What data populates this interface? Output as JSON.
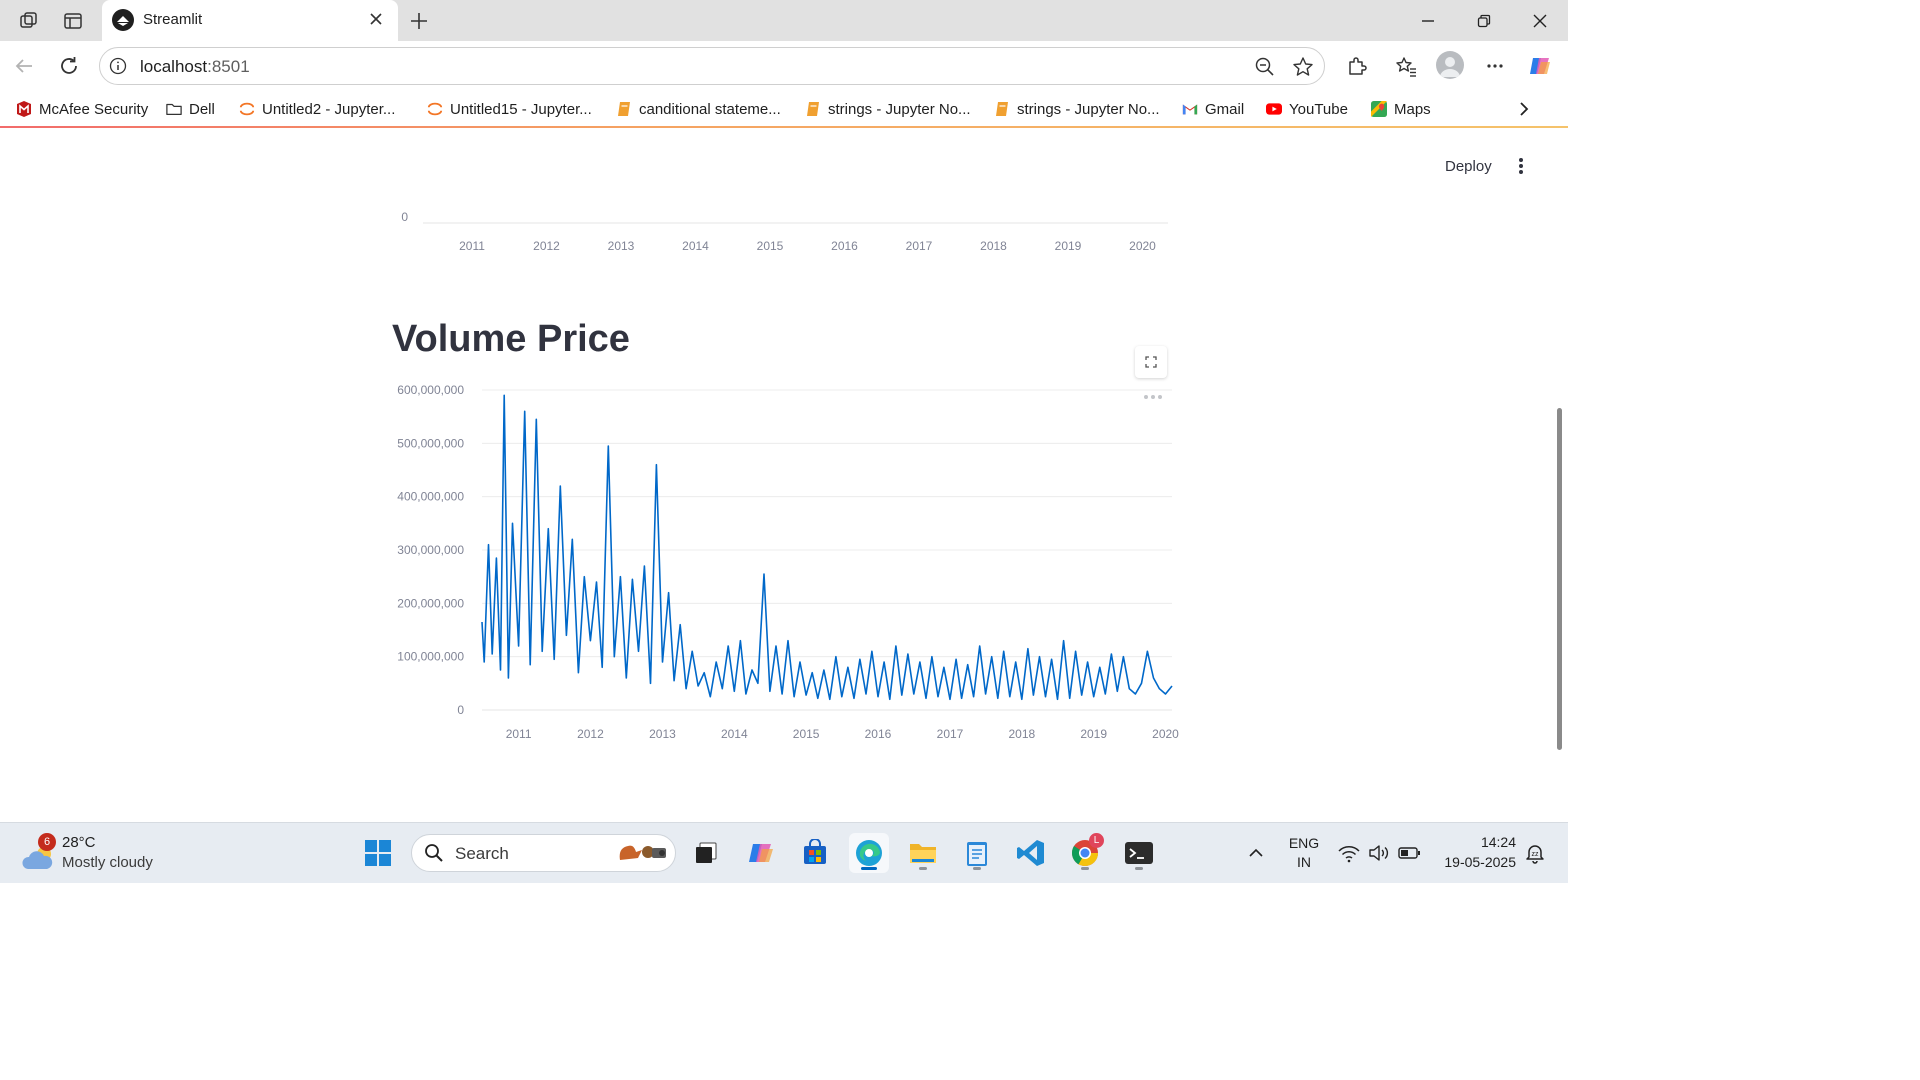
{
  "browser": {
    "tab_title": "Streamlit",
    "url_host": "localhost",
    "url_port": ":8501"
  },
  "bookmarks": [
    {
      "label": "McAfee Security",
      "icon": "mcafee-icon",
      "color": "#c01818"
    },
    {
      "label": "Dell",
      "icon": "folder-icon",
      "color": "#3b3b3b"
    },
    {
      "label": "Untitled2 - Jupyter...",
      "icon": "jupyter-icon",
      "color": "#f37626"
    },
    {
      "label": "Untitled15 - Jupyter...",
      "icon": "jupyter-icon",
      "color": "#f37626"
    },
    {
      "label": "canditional stateme...",
      "icon": "notebook-icon",
      "color": "#f0a030"
    },
    {
      "label": "strings - Jupyter No...",
      "icon": "notebook-icon",
      "color": "#f0a030"
    },
    {
      "label": "strings - Jupyter No...",
      "icon": "notebook-icon",
      "color": "#f0a030"
    },
    {
      "label": "Gmail",
      "icon": "gmail-icon",
      "color": "#d93025"
    },
    {
      "label": "YouTube",
      "icon": "youtube-icon",
      "color": "#ff0000"
    },
    {
      "label": "Maps",
      "icon": "maps-icon",
      "color": "#34a853"
    }
  ],
  "app": {
    "deploy_label": "Deploy",
    "chart_title": "Volume Price"
  },
  "prev_chart": {
    "y_tick": "0",
    "x_ticks": [
      "2011",
      "2012",
      "2013",
      "2014",
      "2015",
      "2016",
      "2017",
      "2018",
      "2019",
      "2020"
    ]
  },
  "chart_data": {
    "type": "line",
    "title": "Volume Price",
    "xlabel": "",
    "ylabel": "",
    "x_range": [
      "2010-06-29",
      "2020-02-03"
    ],
    "ylim": [
      0,
      600000000
    ],
    "y_ticks": [
      "0",
      "100,000,000",
      "200,000,000",
      "300,000,000",
      "400,000,000",
      "500,000,000",
      "600,000,000"
    ],
    "x_ticks": [
      "2011",
      "2012",
      "2013",
      "2014",
      "2015",
      "2016",
      "2017",
      "2018",
      "2019",
      "2020"
    ],
    "grid": true,
    "line_color": "#0068c9",
    "series": [
      {
        "x": [
          "2010-06-29",
          "2010-07-10",
          "2010-08-01",
          "2010-08-20",
          "2010-09-10",
          "2010-10-01",
          "2010-10-20",
          "2010-11-10",
          "2010-12-01",
          "2011-01-01",
          "2011-02-01",
          "2011-03-01",
          "2011-04-01",
          "2011-05-01",
          "2011-06-01",
          "2011-07-01",
          "2011-08-01",
          "2011-09-01",
          "2011-10-01",
          "2011-11-01",
          "2011-12-01",
          "2012-01-01",
          "2012-02-01",
          "2012-03-01",
          "2012-04-01",
          "2012-05-01",
          "2012-06-01",
          "2012-07-01",
          "2012-08-01",
          "2012-09-01",
          "2012-10-01",
          "2012-11-01",
          "2012-12-01",
          "2013-01-01",
          "2013-02-01",
          "2013-03-01",
          "2013-04-01",
          "2013-05-01",
          "2013-06-01",
          "2013-07-01",
          "2013-08-01",
          "2013-09-01",
          "2013-10-01",
          "2013-11-01",
          "2013-12-01",
          "2014-01-01",
          "2014-02-01",
          "2014-03-01",
          "2014-04-01",
          "2014-05-01",
          "2014-06-01",
          "2014-07-01",
          "2014-08-01",
          "2014-09-01",
          "2014-10-01",
          "2014-11-01",
          "2014-12-01",
          "2015-01-01",
          "2015-02-01",
          "2015-03-01",
          "2015-04-01",
          "2015-05-01",
          "2015-06-01",
          "2015-07-01",
          "2015-08-01",
          "2015-09-01",
          "2015-10-01",
          "2015-11-01",
          "2015-12-01",
          "2016-01-01",
          "2016-02-01",
          "2016-03-01",
          "2016-04-01",
          "2016-05-01",
          "2016-06-01",
          "2016-07-01",
          "2016-08-01",
          "2016-09-01",
          "2016-10-01",
          "2016-11-01",
          "2016-12-01",
          "2017-01-01",
          "2017-02-01",
          "2017-03-01",
          "2017-04-01",
          "2017-05-01",
          "2017-06-01",
          "2017-07-01",
          "2017-08-01",
          "2017-09-01",
          "2017-10-01",
          "2017-11-01",
          "2017-12-01",
          "2018-01-01",
          "2018-02-01",
          "2018-03-01",
          "2018-04-01",
          "2018-05-01",
          "2018-06-01",
          "2018-07-01",
          "2018-08-01",
          "2018-09-01",
          "2018-10-01",
          "2018-11-01",
          "2018-12-01",
          "2019-01-01",
          "2019-02-01",
          "2019-03-01",
          "2019-04-01",
          "2019-05-01",
          "2019-06-01",
          "2019-07-01",
          "2019-08-01",
          "2019-09-01",
          "2019-10-01",
          "2019-11-01",
          "2019-12-01",
          "2020-01-01",
          "2020-02-03"
        ],
        "values": [
          165000000,
          90000000,
          310000000,
          105000000,
          285000000,
          75000000,
          590000000,
          60000000,
          350000000,
          120000000,
          560000000,
          85000000,
          545000000,
          110000000,
          340000000,
          95000000,
          420000000,
          140000000,
          320000000,
          70000000,
          250000000,
          130000000,
          240000000,
          80000000,
          495000000,
          100000000,
          250000000,
          60000000,
          245000000,
          110000000,
          270000000,
          50000000,
          460000000,
          90000000,
          220000000,
          55000000,
          160000000,
          40000000,
          110000000,
          45000000,
          70000000,
          25000000,
          90000000,
          40000000,
          120000000,
          35000000,
          130000000,
          30000000,
          75000000,
          50000000,
          255000000,
          35000000,
          120000000,
          30000000,
          130000000,
          25000000,
          90000000,
          28000000,
          70000000,
          22000000,
          75000000,
          20000000,
          100000000,
          25000000,
          80000000,
          22000000,
          95000000,
          30000000,
          110000000,
          25000000,
          90000000,
          20000000,
          120000000,
          28000000,
          105000000,
          30000000,
          90000000,
          22000000,
          100000000,
          25000000,
          80000000,
          20000000,
          95000000,
          22000000,
          85000000,
          25000000,
          120000000,
          30000000,
          100000000,
          22000000,
          110000000,
          25000000,
          90000000,
          20000000,
          115000000,
          28000000,
          100000000,
          25000000,
          95000000,
          20000000,
          130000000,
          22000000,
          110000000,
          28000000,
          90000000,
          25000000,
          80000000,
          30000000,
          105000000,
          35000000,
          100000000,
          40000000,
          30000000,
          50000000,
          110000000,
          60000000,
          40000000,
          30000000,
          45000000
        ]
      }
    ]
  },
  "taskbar": {
    "weather_temp": "28°C",
    "weather_desc": "Mostly cloudy",
    "weather_badge": "6",
    "search_placeholder": "Search",
    "lang_1": "ENG",
    "lang_2": "IN",
    "time": "14:24",
    "date": "19-05-2025",
    "chrome_badge": "L"
  }
}
